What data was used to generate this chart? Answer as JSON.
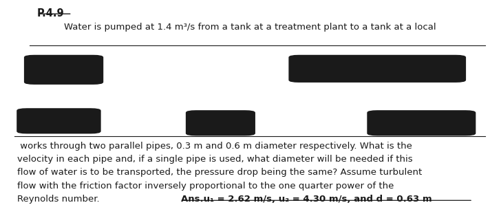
{
  "title": "P.4.9",
  "line1": "Water is pumped at 1.4 m³/s from a tank at a treatment plant to a tank at a local",
  "line2": " works through two parallel pipes, 0.3 m and 0.6 m diameter respectively. What is the",
  "line3": "velocity in each pipe and, if a single pipe is used, what diameter will be needed if this",
  "line4": "flow of water is to be transported, the pressure drop being the same? Assume turbulent",
  "line5": "flow with the friction factor inversely proportional to the one quarter power of the",
  "line6_left": "Reynolds number.",
  "line6_right": "Ans.u₁ = 2.62 m/s, u₂ = 4.30 m/s, and d = 0.63 m",
  "bg_color": "#ffffff",
  "divider_color": "#1a1a1a",
  "text_color": "#1a1a1a",
  "font_size_title": 10.5,
  "font_size_body": 9.5
}
